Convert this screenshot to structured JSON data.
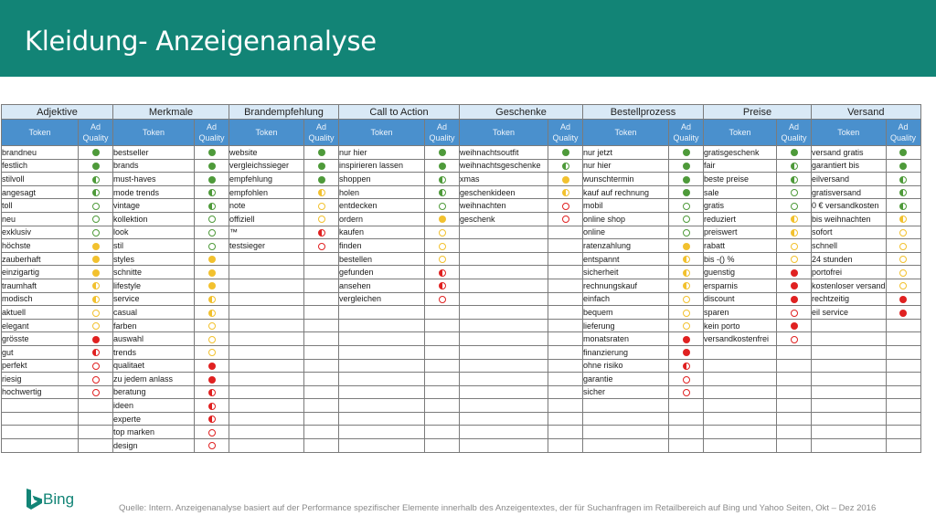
{
  "title": "Kleidung- Anzeigenanalyse",
  "legend_colors": {
    "green": "#4e9a3a",
    "yellow": "#f2c12e",
    "red": "#e02121"
  },
  "sub_labels": {
    "token": "Token",
    "ad": "Ad",
    "quality": "Quality"
  },
  "groups": [
    {
      "name": "Adjektive",
      "rows": [
        [
          "brandneu",
          "full-g"
        ],
        [
          "festlich",
          "full-g"
        ],
        [
          "stilvoll",
          "half-g"
        ],
        [
          "angesagt",
          "half-g"
        ],
        [
          "toll",
          "empty-g"
        ],
        [
          "neu",
          "empty-g"
        ],
        [
          "exklusiv",
          "empty-g"
        ],
        [
          "höchste",
          "full-y"
        ],
        [
          "zauberhaft",
          "full-y"
        ],
        [
          "einzigartig",
          "full-y"
        ],
        [
          "traumhaft",
          "half-y"
        ],
        [
          "modisch",
          "half-y"
        ],
        [
          "aktuell",
          "empty-y"
        ],
        [
          "elegant",
          "empty-y"
        ],
        [
          "grösste",
          "full-r"
        ],
        [
          "gut",
          "half-r"
        ],
        [
          "perfekt",
          "empty-r"
        ],
        [
          "riesig",
          "empty-r"
        ],
        [
          "hochwertig",
          "empty-r"
        ]
      ]
    },
    {
      "name": "Merkmale",
      "rows": [
        [
          "bestseller",
          "full-g"
        ],
        [
          "brands",
          "full-g"
        ],
        [
          "must-haves",
          "full-g"
        ],
        [
          "mode trends",
          "half-g"
        ],
        [
          "vintage",
          "half-g"
        ],
        [
          "kollektion",
          "empty-g"
        ],
        [
          "look",
          "empty-g"
        ],
        [
          "stil",
          "empty-g"
        ],
        [
          "styles",
          "full-y"
        ],
        [
          "schnitte",
          "full-y"
        ],
        [
          "lifestyle",
          "full-y"
        ],
        [
          "service",
          "half-y"
        ],
        [
          "casual",
          "half-y"
        ],
        [
          "farben",
          "empty-y"
        ],
        [
          "auswahl",
          "empty-y"
        ],
        [
          "trends",
          "empty-y"
        ],
        [
          "qualitaet",
          "full-r"
        ],
        [
          "zu jedem anlass",
          "full-r"
        ],
        [
          "beratung",
          "half-r"
        ],
        [
          "ideen",
          "half-r"
        ],
        [
          "experte",
          "half-r"
        ],
        [
          "top marken",
          "empty-r"
        ],
        [
          "design",
          "empty-r"
        ]
      ]
    },
    {
      "name": "Brandempfehlung",
      "rows": [
        [
          "website",
          "full-g"
        ],
        [
          "vergleichssieger",
          "full-g"
        ],
        [
          "empfehlung",
          "full-g"
        ],
        [
          "empfohlen",
          "half-y"
        ],
        [
          "note",
          "empty-y"
        ],
        [
          "offiziell",
          "empty-y"
        ],
        [
          "™",
          "half-r"
        ],
        [
          "testsieger",
          "empty-r"
        ]
      ]
    },
    {
      "name": "Call to Action",
      "rows": [
        [
          "nur hier",
          "full-g"
        ],
        [
          "inspirieren lassen",
          "full-g"
        ],
        [
          "shoppen",
          "half-g"
        ],
        [
          "holen",
          "half-g"
        ],
        [
          "entdecken",
          "empty-g"
        ],
        [
          "ordern",
          "full-y"
        ],
        [
          "kaufen",
          "empty-y"
        ],
        [
          "finden",
          "empty-y"
        ],
        [
          "bestellen",
          "empty-y"
        ],
        [
          "gefunden",
          "half-r"
        ],
        [
          "ansehen",
          "half-r"
        ],
        [
          "vergleichen",
          "empty-r"
        ]
      ]
    },
    {
      "name": "Geschenke",
      "rows": [
        [
          "weihnachtsoutfit",
          "full-g"
        ],
        [
          "weihnachtsgeschenke",
          "half-g"
        ],
        [
          "xmas",
          "full-y"
        ],
        [
          "geschenkideen",
          "half-y"
        ],
        [
          "weihnachten",
          "empty-r"
        ],
        [
          "geschenk",
          "empty-r"
        ]
      ]
    },
    {
      "name": "Bestellprozess",
      "rows": [
        [
          "nur jetzt",
          "full-g"
        ],
        [
          "nur hier",
          "full-g"
        ],
        [
          "wunschtermin",
          "full-g"
        ],
        [
          "kauf auf rechnung",
          "full-g"
        ],
        [
          "mobil",
          "empty-g"
        ],
        [
          "online shop",
          "empty-g"
        ],
        [
          "online",
          "empty-g"
        ],
        [
          "ratenzahlung",
          "full-y"
        ],
        [
          "entspannt",
          "half-y"
        ],
        [
          "sicherheit",
          "half-y"
        ],
        [
          "rechnungskauf",
          "half-y"
        ],
        [
          "einfach",
          "empty-y"
        ],
        [
          "bequem",
          "empty-y"
        ],
        [
          "lieferung",
          "empty-y"
        ],
        [
          "monatsraten",
          "full-r"
        ],
        [
          "finanzierung",
          "full-r"
        ],
        [
          "ohne risiko",
          "half-r"
        ],
        [
          "garantie",
          "empty-r"
        ],
        [
          "sicher",
          "empty-r"
        ]
      ]
    },
    {
      "name": "Preise",
      "rows": [
        [
          "gratisgeschenk",
          "full-g"
        ],
        [
          "fair",
          "half-g"
        ],
        [
          "beste preise",
          "half-g"
        ],
        [
          "sale",
          "empty-g"
        ],
        [
          "gratis",
          "empty-g"
        ],
        [
          "reduziert",
          "half-y"
        ],
        [
          "preiswert",
          "half-y"
        ],
        [
          "rabatt",
          "empty-y"
        ],
        [
          "bis -() %",
          "empty-y"
        ],
        [
          "guenstig",
          "full-r"
        ],
        [
          "ersparnis",
          "full-r"
        ],
        [
          "discount",
          "full-r"
        ],
        [
          "sparen",
          "empty-r"
        ],
        [
          "kein porto",
          "full-r"
        ],
        [
          "versandkostenfrei",
          "empty-r"
        ]
      ]
    },
    {
      "name": "Versand",
      "rows": [
        [
          "versand gratis",
          "full-g"
        ],
        [
          "garantiert bis",
          "full-g"
        ],
        [
          "eilversand",
          "half-g"
        ],
        [
          "gratisversand",
          "half-g"
        ],
        [
          "0 € versandkosten",
          "half-g"
        ],
        [
          "bis weihnachten",
          "half-y"
        ],
        [
          "sofort",
          "empty-y"
        ],
        [
          "schnell",
          "empty-y"
        ],
        [
          "24 stunden",
          "empty-y"
        ],
        [
          "portofrei",
          "empty-y"
        ],
        [
          "kostenloser versand",
          "empty-y"
        ],
        [
          "rechtzeitig",
          "full-r"
        ],
        [
          "eil service",
          "full-r"
        ]
      ]
    }
  ],
  "brand": "Bing",
  "source": "Quelle: Intern. Anzeigenanalyse basiert auf der Performance spezifischer Elemente innerhalb des Anzeigentextes, der für Suchanfragen im Retailbereich auf Bing und Yahoo Seiten, Okt – Dez 2016"
}
